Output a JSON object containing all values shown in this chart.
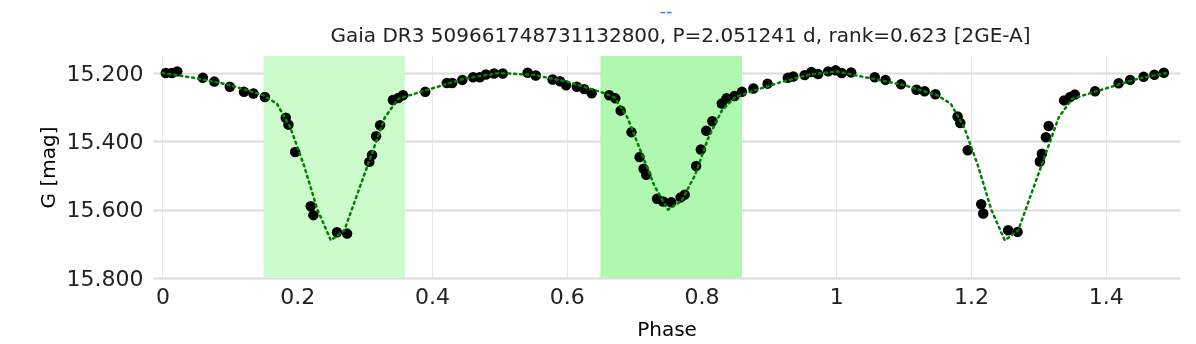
{
  "chart_data": {
    "type": "scatter",
    "title": "Gaia DR3 509661748731132800, P=2.051241 d, rank=0.623 [2GE-A]",
    "xlabel": "Phase",
    "ylabel": "G [mag]",
    "annotations": [
      "--"
    ],
    "xlim": [
      -0.014,
      1.51
    ],
    "xticks": [
      0,
      0.2,
      0.4,
      0.6,
      0.8,
      1,
      1.2,
      1.4
    ],
    "ylim": [
      15.8,
      15.15
    ],
    "yticks": [
      {
        "value": 15.2,
        "label": "15.200"
      },
      {
        "value": 15.4,
        "label": "15.400"
      },
      {
        "value": 15.6,
        "label": "15.600"
      },
      {
        "value": 15.8,
        "label": "15.800"
      }
    ],
    "grid": true,
    "marker": "circle",
    "bands": [
      {
        "axis": "x",
        "from": 0.15,
        "to": 0.36,
        "color": "#ccfccc"
      },
      {
        "axis": "x",
        "from": 0.65,
        "to": 0.86,
        "color": "#b0f7b0"
      }
    ],
    "series": [
      {
        "color": "#000000",
        "x": [
          0.005,
          0.014,
          0.022,
          0.06,
          0.077,
          0.1,
          0.121,
          0.135,
          0.152,
          0.183,
          0.187,
          0.197,
          0.22,
          0.224,
          0.259,
          0.274,
          0.307,
          0.311,
          0.317,
          0.323,
          0.342,
          0.35,
          0.357,
          0.39,
          0.422,
          0.43,
          0.445,
          0.461,
          0.471,
          0.48,
          0.492,
          0.505,
          0.542,
          0.554,
          0.579,
          0.59,
          0.599,
          0.615,
          0.626,
          0.637,
          0.663,
          0.672,
          0.68,
          0.696,
          0.708,
          0.714,
          0.718,
          0.734,
          0.743,
          0.755,
          0.769,
          0.775,
          0.792,
          0.799,
          0.807,
          0.816,
          0.83,
          0.837,
          0.849,
          0.86,
          0.877,
          0.898,
          0.928,
          0.936,
          0.953,
          0.963,
          0.973,
          0.988,
          0.999,
          1.008,
          1.022,
          1.057,
          1.073,
          1.096,
          1.119,
          1.131,
          1.147,
          1.18,
          1.184,
          1.195,
          1.215,
          1.218,
          1.255,
          1.269,
          1.302,
          1.305,
          1.311,
          1.315,
          1.338,
          1.347,
          1.354,
          1.384,
          1.419,
          1.436,
          1.456,
          1.472,
          1.486
        ],
        "values": [
          15.2,
          15.2,
          15.195,
          15.214,
          15.225,
          15.24,
          15.255,
          15.26,
          15.27,
          15.331,
          15.351,
          15.431,
          15.59,
          15.616,
          15.666,
          15.67,
          15.46,
          15.44,
          15.385,
          15.353,
          15.279,
          15.273,
          15.265,
          15.255,
          15.229,
          15.229,
          15.22,
          15.212,
          15.212,
          15.204,
          15.201,
          15.201,
          15.199,
          15.207,
          15.219,
          15.224,
          15.236,
          15.24,
          15.247,
          15.259,
          15.265,
          15.274,
          15.31,
          15.373,
          15.446,
          15.48,
          15.498,
          15.568,
          15.576,
          15.578,
          15.564,
          15.556,
          15.472,
          15.424,
          15.369,
          15.341,
          15.289,
          15.274,
          15.267,
          15.255,
          15.245,
          15.231,
          15.214,
          15.21,
          15.206,
          15.197,
          15.203,
          15.195,
          15.192,
          15.2,
          15.198,
          15.212,
          15.22,
          15.233,
          15.249,
          15.253,
          15.262,
          15.327,
          15.346,
          15.426,
          15.584,
          15.611,
          15.66,
          15.665,
          15.459,
          15.436,
          15.388,
          15.355,
          15.28,
          15.27,
          15.263,
          15.253,
          15.23,
          15.22,
          15.211,
          15.205,
          15.199
        ]
      },
      {
        "type": "line",
        "color": "#008000",
        "line_style": "dotted",
        "marker": "none",
        "x": [
          0,
          0.05,
          0.1,
          0.15,
          0.17,
          0.19,
          0.21,
          0.23,
          0.25,
          0.27,
          0.29,
          0.31,
          0.33,
          0.35,
          0.4,
          0.45,
          0.5,
          0.55,
          0.6,
          0.65,
          0.67,
          0.69,
          0.71,
          0.73,
          0.75,
          0.77,
          0.79,
          0.81,
          0.83,
          0.85,
          0.88,
          0.92,
          0.96,
          1,
          1.05,
          1.1,
          1.15,
          1.17,
          1.19,
          1.21,
          1.23,
          1.25,
          1.27,
          1.29,
          1.31,
          1.33,
          1.35,
          1.4,
          1.45,
          1.49
        ],
        "values": [
          15.2,
          15.215,
          15.235,
          15.265,
          15.29,
          15.36,
          15.47,
          15.6,
          15.69,
          15.66,
          15.55,
          15.44,
          15.33,
          15.275,
          15.245,
          15.215,
          15.2,
          15.205,
          15.225,
          15.255,
          15.27,
          15.33,
          15.43,
          15.53,
          15.6,
          15.575,
          15.5,
          15.39,
          15.31,
          15.27,
          15.25,
          15.225,
          15.205,
          15.195,
          15.215,
          15.235,
          15.265,
          15.29,
          15.36,
          15.47,
          15.6,
          15.69,
          15.66,
          15.55,
          15.44,
          15.33,
          15.275,
          15.245,
          15.215,
          15.2
        ]
      }
    ]
  }
}
